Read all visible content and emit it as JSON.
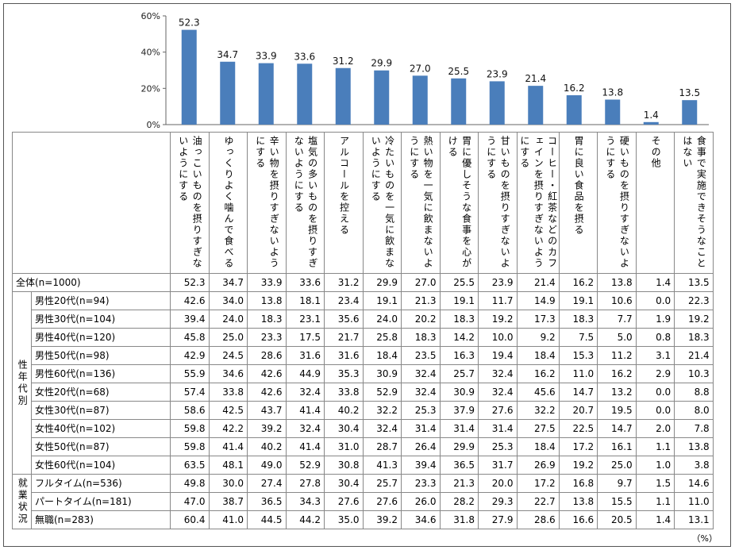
{
  "chart_data": {
    "type": "bar",
    "ylim": [
      0,
      60
    ],
    "yticks": [
      "0%",
      "20%",
      "40%",
      "60%"
    ],
    "bar_color": "#4a7ebb",
    "categories": [
      "油っこいものを摂りすぎないようにする",
      "ゆっくりよく噛んで食べる",
      "辛い物を摂りすぎないようにする",
      "塩気の多いものを摂りすぎないようにする",
      "アルコールを控える",
      "冷たいものを一気に飲まないようにする",
      "熱い物を一気に飲まないようにする",
      "胃に優しそうな食事を心がける",
      "甘いものを摂りすぎないようにする",
      "コーヒー・紅茶などのカフェインを摂りすぎないようにする",
      "胃に良い食品を摂る",
      "硬いものを摂りすぎないようにする",
      "その他",
      "食事で実施できそうなことはない"
    ],
    "values": [
      52.3,
      34.7,
      33.9,
      33.6,
      31.2,
      29.9,
      27.0,
      25.5,
      23.9,
      21.4,
      16.2,
      13.8,
      1.4,
      13.5
    ],
    "value_labels": [
      "52.3",
      "34.7",
      "33.9",
      "33.6",
      "31.2",
      "29.9",
      "27.0",
      "25.5",
      "23.9",
      "21.4",
      "16.2",
      "13.8",
      "1.4",
      "13.5"
    ]
  },
  "table": {
    "total_row": {
      "label": "全体(n=1000)",
      "values": [
        "52.3",
        "34.7",
        "33.9",
        "33.6",
        "31.2",
        "29.9",
        "27.0",
        "25.5",
        "23.9",
        "21.4",
        "16.2",
        "13.8",
        "1.4",
        "13.5"
      ]
    },
    "groups": [
      {
        "name": "性年代別",
        "rows": [
          {
            "label": "男性20代(n=94)",
            "values": [
              "42.6",
              "34.0",
              "13.8",
              "18.1",
              "23.4",
              "19.1",
              "21.3",
              "19.1",
              "11.7",
              "14.9",
              "19.1",
              "10.6",
              "0.0",
              "22.3"
            ]
          },
          {
            "label": "男性30代(n=104)",
            "values": [
              "39.4",
              "24.0",
              "18.3",
              "23.1",
              "35.6",
              "24.0",
              "20.2",
              "18.3",
              "19.2",
              "17.3",
              "18.3",
              "7.7",
              "1.9",
              "19.2"
            ]
          },
          {
            "label": "男性40代(n=120)",
            "values": [
              "45.8",
              "25.0",
              "23.3",
              "17.5",
              "21.7",
              "25.8",
              "18.3",
              "14.2",
              "10.0",
              "9.2",
              "7.5",
              "5.0",
              "0.8",
              "18.3"
            ]
          },
          {
            "label": "男性50代(n=98)",
            "values": [
              "42.9",
              "24.5",
              "28.6",
              "31.6",
              "31.6",
              "18.4",
              "23.5",
              "16.3",
              "19.4",
              "18.4",
              "15.3",
              "11.2",
              "3.1",
              "21.4"
            ]
          },
          {
            "label": "男性60代(n=136)",
            "values": [
              "55.9",
              "34.6",
              "42.6",
              "44.9",
              "35.3",
              "30.9",
              "32.4",
              "25.7",
              "32.4",
              "16.2",
              "11.0",
              "16.2",
              "2.9",
              "10.3"
            ]
          },
          {
            "label": "女性20代(n=68)",
            "values": [
              "57.4",
              "33.8",
              "42.6",
              "32.4",
              "33.8",
              "52.9",
              "32.4",
              "30.9",
              "32.4",
              "45.6",
              "14.7",
              "13.2",
              "0.0",
              "8.8"
            ]
          },
          {
            "label": "女性30代(n=87)",
            "values": [
              "58.6",
              "42.5",
              "43.7",
              "41.4",
              "40.2",
              "32.2",
              "25.3",
              "37.9",
              "27.6",
              "32.2",
              "20.7",
              "19.5",
              "0.0",
              "8.0"
            ]
          },
          {
            "label": "女性40代(n=102)",
            "values": [
              "59.8",
              "42.2",
              "39.2",
              "32.4",
              "30.4",
              "32.4",
              "31.4",
              "31.4",
              "31.4",
              "27.5",
              "22.5",
              "14.7",
              "2.0",
              "7.8"
            ]
          },
          {
            "label": "女性50代(n=87)",
            "values": [
              "59.8",
              "41.4",
              "40.2",
              "41.4",
              "31.0",
              "28.7",
              "26.4",
              "29.9",
              "25.3",
              "18.4",
              "17.2",
              "16.1",
              "1.1",
              "13.8"
            ]
          },
          {
            "label": "女性60代(n=104)",
            "values": [
              "63.5",
              "48.1",
              "49.0",
              "52.9",
              "30.8",
              "41.3",
              "39.4",
              "36.5",
              "31.7",
              "26.9",
              "19.2",
              "25.0",
              "1.0",
              "3.8"
            ]
          }
        ]
      },
      {
        "name": "就業状況",
        "rows": [
          {
            "label": "フルタイム(n=536)",
            "values": [
              "49.8",
              "30.0",
              "27.4",
              "27.8",
              "30.4",
              "25.7",
              "23.3",
              "21.3",
              "20.0",
              "17.2",
              "16.8",
              "9.7",
              "1.5",
              "14.6"
            ]
          },
          {
            "label": "パートタイム(n=181)",
            "values": [
              "47.0",
              "38.7",
              "36.5",
              "34.3",
              "27.6",
              "27.6",
              "26.0",
              "28.2",
              "29.3",
              "22.7",
              "13.8",
              "15.5",
              "1.1",
              "11.0"
            ]
          },
          {
            "label": "無職(n=283)",
            "values": [
              "60.4",
              "41.0",
              "44.5",
              "44.2",
              "35.0",
              "39.2",
              "34.6",
              "31.8",
              "27.9",
              "28.6",
              "16.6",
              "20.5",
              "1.4",
              "13.1"
            ]
          }
        ]
      }
    ],
    "unit_note": "（%）"
  }
}
